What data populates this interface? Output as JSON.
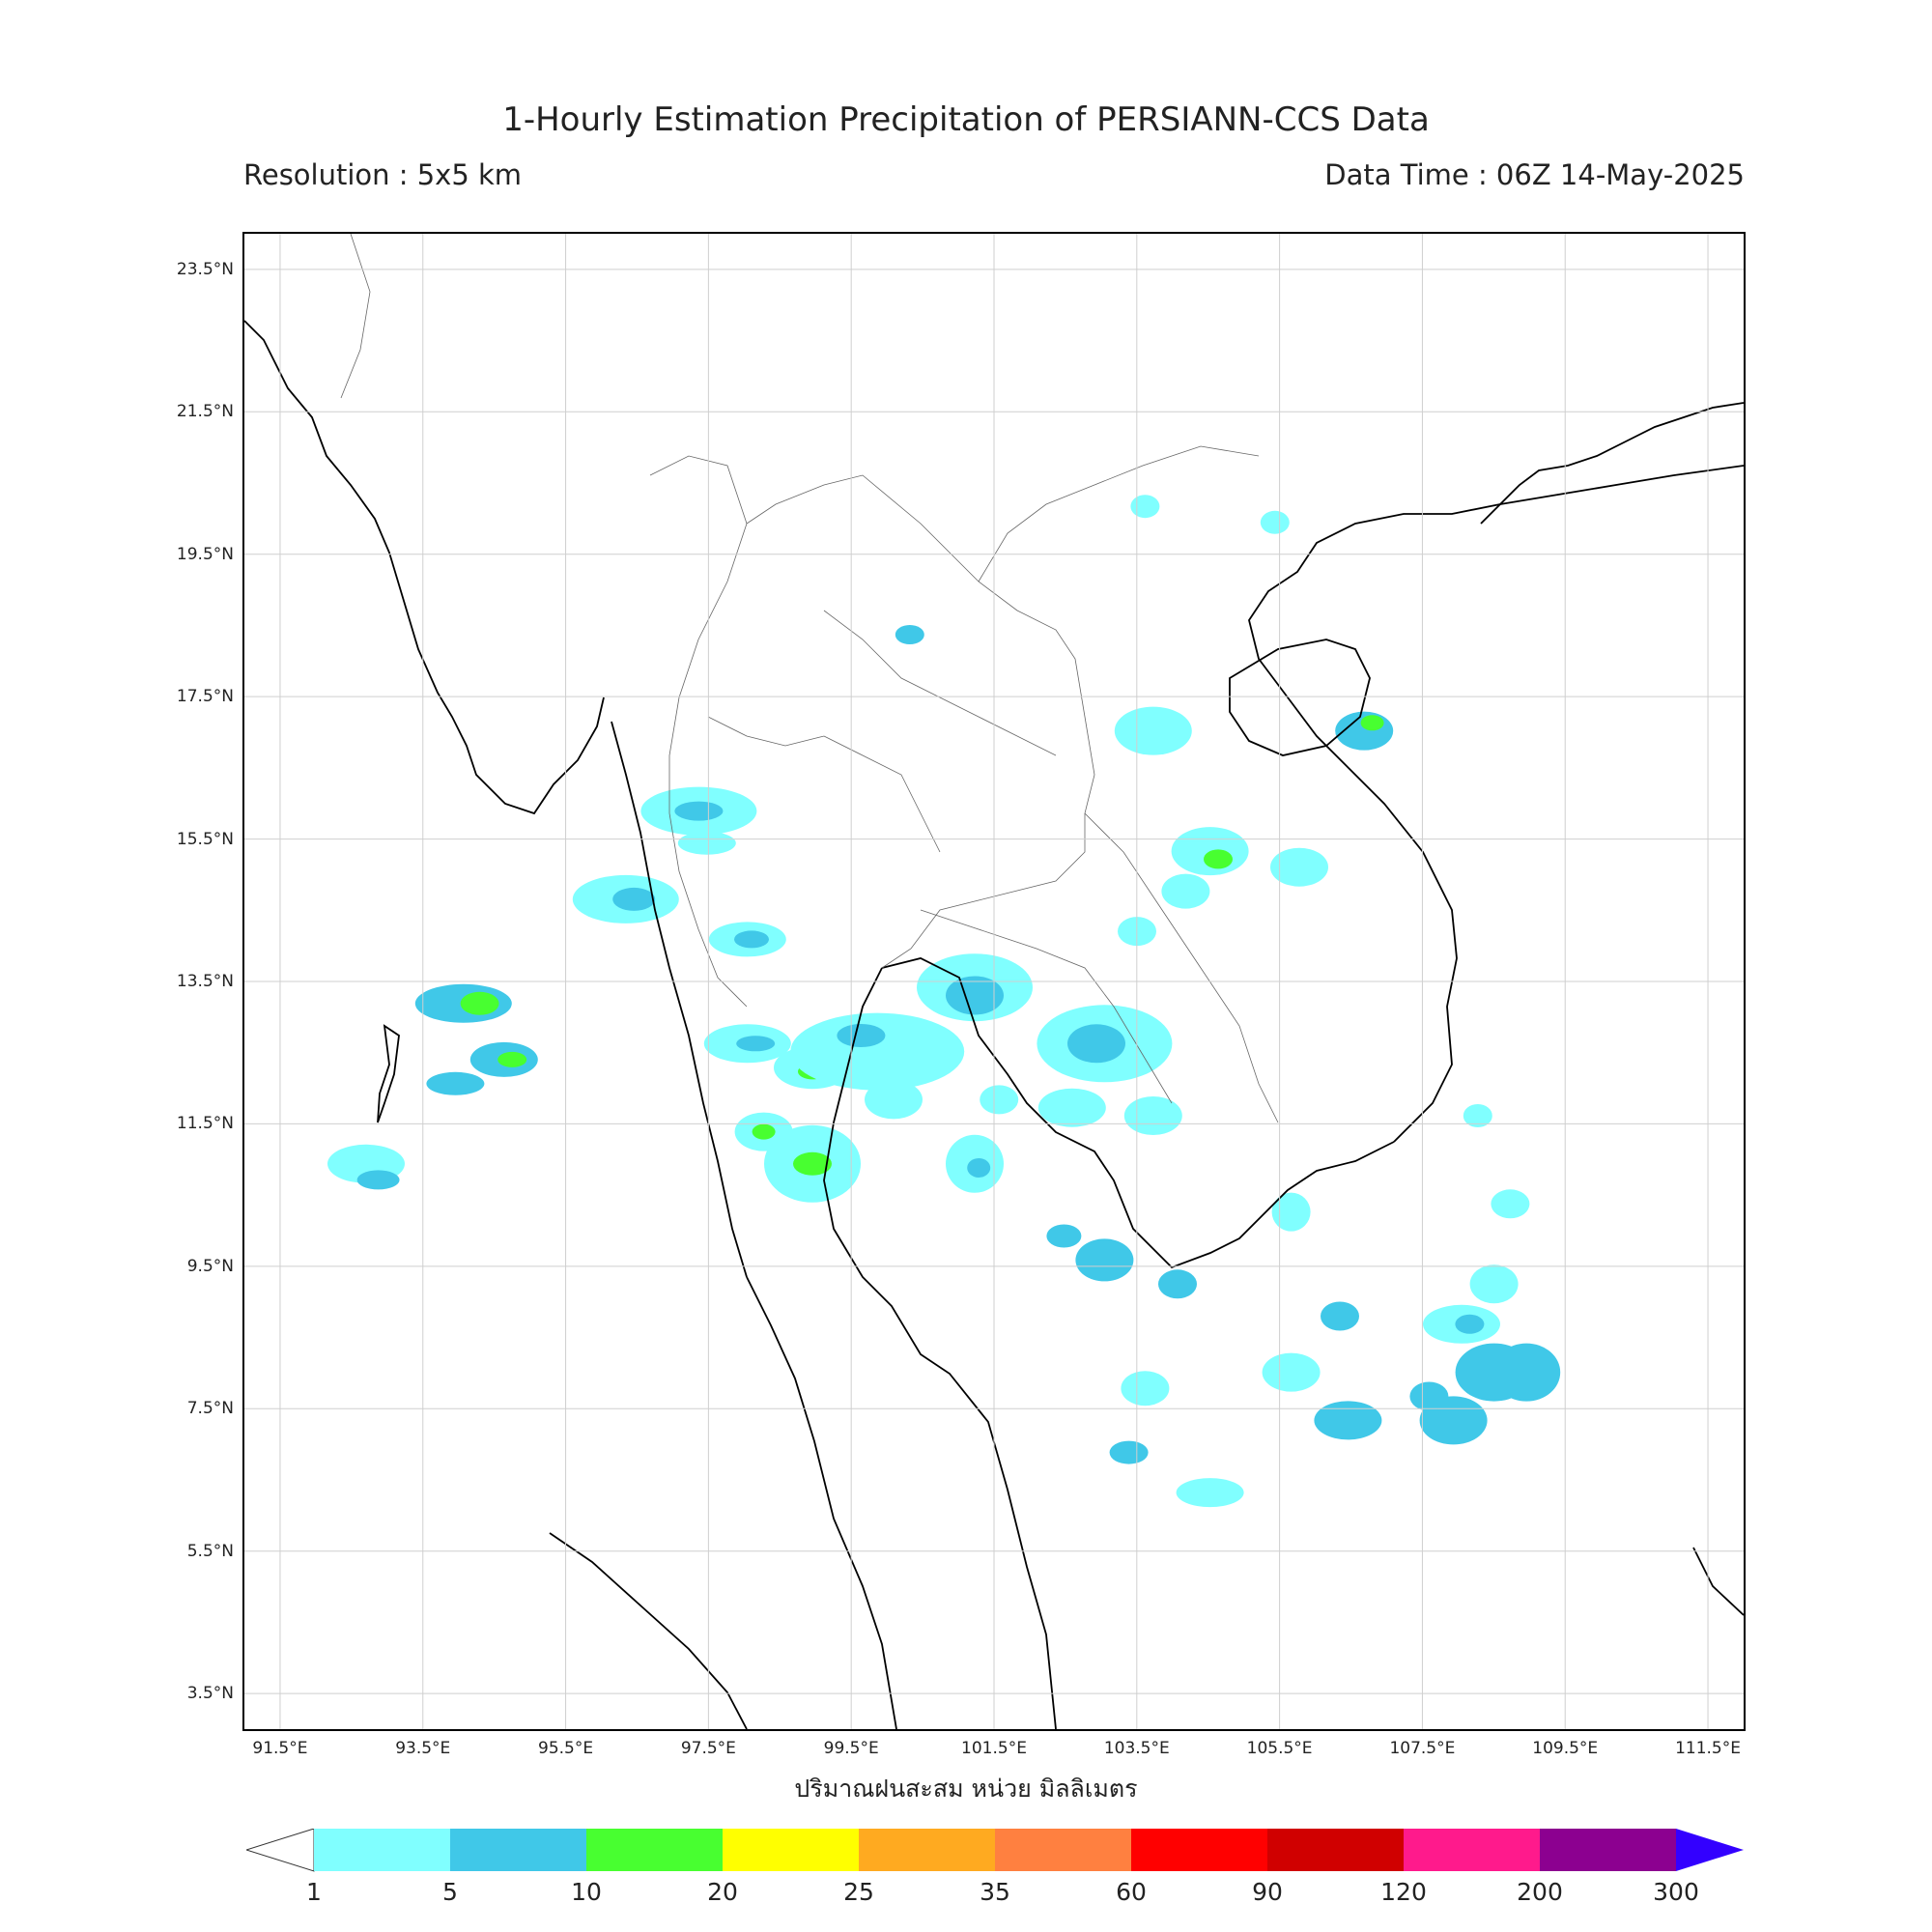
{
  "title": "1-Hourly Estimation Precipitation of PERSIANN-CCS Data",
  "resolution": "Resolution : 5x5 km",
  "data_time": "Data Time : 06Z 14-May-2025",
  "colorbar_label": "ปริมาณฝนสะสม หน่วย มิลลิเมตร",
  "lat_labels": [
    "23.5°N",
    "21.5°N",
    "19.5°N",
    "17.5°N",
    "15.5°N",
    "13.5°N",
    "11.5°N",
    "9.5°N",
    "7.5°N",
    "5.5°N",
    "3.5°N"
  ],
  "lon_labels": [
    "91.5°E",
    "93.5°E",
    "95.5°E",
    "97.5°E",
    "99.5°E",
    "101.5°E",
    "103.5°E",
    "105.5°E",
    "107.5°E",
    "109.5°E",
    "111.5°E"
  ],
  "colorbar": {
    "levels": [
      "1",
      "5",
      "10",
      "20",
      "25",
      "35",
      "60",
      "90",
      "120",
      "200",
      "300"
    ],
    "colors": [
      "#80ffff",
      "#40c8e8",
      "#48ff30",
      "#ffff00",
      "#ffaa20",
      "#ff8040",
      "#ff0000",
      "#d00000",
      "#ff1a8c",
      "#8c0090",
      "#3300ff"
    ],
    "under_color": "#ffffff"
  },
  "map_data": {
    "extent": {
      "lon": [
        91,
        112
      ],
      "lat": [
        3,
        24
      ]
    },
    "grid": true,
    "grid_lon_step": 2,
    "grid_lat_step": 2
  }
}
